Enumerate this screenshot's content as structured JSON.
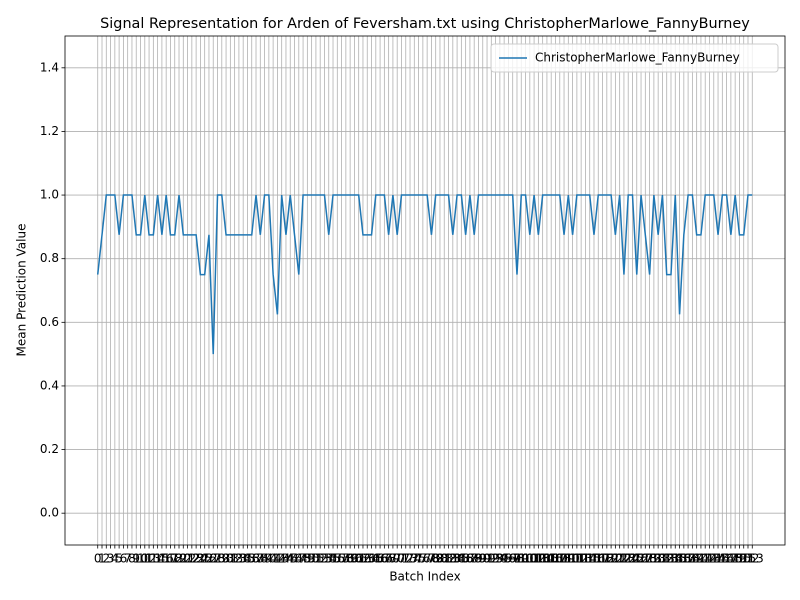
{
  "chart_data": {
    "type": "line",
    "title": "Signal Representation for Arden of Feversham.txt using ChristopherMarlowe_FannyBurney",
    "x_label": "Batch Index",
    "y_label": "Mean Prediction Value",
    "x": [
      0,
      1,
      2,
      3,
      4,
      5,
      6,
      7,
      8,
      9,
      10,
      11,
      12,
      13,
      14,
      15,
      16,
      17,
      18,
      19,
      20,
      21,
      22,
      23,
      24,
      25,
      26,
      27,
      28,
      29,
      30,
      31,
      32,
      33,
      34,
      35,
      36,
      37,
      38,
      39,
      40,
      41,
      42,
      43,
      44,
      45,
      46,
      47,
      48,
      49,
      50,
      51,
      52,
      53,
      54,
      55,
      56,
      57,
      58,
      59,
      60,
      61,
      62,
      63,
      64,
      65,
      66,
      67,
      68,
      69,
      70,
      71,
      72,
      73,
      74,
      75,
      76,
      77,
      78,
      79,
      80,
      81,
      82,
      83,
      84,
      85,
      86,
      87,
      88,
      89,
      90,
      91,
      92,
      93,
      94,
      95,
      96,
      97,
      98,
      99,
      100,
      101,
      102,
      103,
      104,
      105,
      106,
      107,
      108,
      109,
      110,
      111,
      112,
      113,
      114,
      115,
      116,
      117,
      118,
      119,
      120,
      121,
      122,
      123,
      124,
      125,
      126,
      127,
      128,
      129,
      130,
      131,
      132,
      133,
      134,
      135,
      136,
      137,
      138,
      139,
      140,
      141,
      142,
      143,
      144,
      145,
      146,
      147,
      148,
      149,
      150,
      151,
      152,
      153
    ],
    "series": [
      {
        "name": "ChristopherMarlowe_FannyBurney",
        "color": "#1f77b4",
        "values": [
          0.75,
          0.875,
          1,
          1,
          1,
          0.875,
          1,
          1,
          1,
          0.875,
          0.875,
          1,
          0.875,
          0.875,
          1,
          0.875,
          1,
          0.875,
          0.875,
          1,
          0.875,
          0.875,
          0.875,
          0.875,
          0.75,
          0.75,
          0.875,
          0.5,
          1,
          1,
          0.875,
          0.875,
          0.875,
          0.875,
          0.875,
          0.875,
          0.875,
          1,
          0.875,
          1,
          1,
          0.75,
          0.625,
          1,
          0.875,
          1,
          0.875,
          0.75,
          1,
          1,
          1,
          1,
          1,
          1,
          0.875,
          1,
          1,
          1,
          1,
          1,
          1,
          1,
          0.875,
          0.875,
          0.875,
          1,
          1,
          1,
          0.875,
          1,
          0.875,
          1,
          1,
          1,
          1,
          1,
          1,
          1,
          0.875,
          1,
          1,
          1,
          1,
          0.875,
          1,
          1,
          0.875,
          1,
          0.875,
          1,
          1,
          1,
          1,
          1,
          1,
          1,
          1,
          1,
          0.75,
          1,
          1,
          0.875,
          1,
          0.875,
          1,
          1,
          1,
          1,
          1,
          0.875,
          1,
          0.875,
          1,
          1,
          1,
          1,
          0.875,
          1,
          1,
          1,
          1,
          0.875,
          1,
          0.75,
          1,
          1,
          0.75,
          1,
          0.875,
          0.75,
          1,
          0.875,
          1,
          0.75,
          0.75,
          1,
          0.625,
          0.875,
          1,
          1,
          0.875,
          0.875,
          1,
          1,
          1,
          0.875,
          1,
          1,
          0.875,
          1,
          0.875,
          0.875,
          1,
          1
        ]
      }
    ],
    "xlim": [
      -7.65,
      160.65
    ],
    "xticks": [
      0,
      1,
      2,
      3,
      4,
      5,
      6,
      7,
      8,
      9,
      10,
      11,
      12,
      13,
      14,
      15,
      16,
      17,
      18,
      19,
      20,
      21,
      22,
      23,
      24,
      25,
      26,
      27,
      28,
      29,
      30,
      31,
      32,
      33,
      34,
      35,
      36,
      37,
      38,
      39,
      40,
      41,
      42,
      43,
      44,
      45,
      46,
      47,
      48,
      49,
      50,
      51,
      52,
      53,
      54,
      55,
      56,
      57,
      58,
      59,
      60,
      61,
      62,
      63,
      64,
      65,
      66,
      67,
      68,
      69,
      70,
      71,
      72,
      73,
      74,
      75,
      76,
      77,
      78,
      79,
      80,
      81,
      82,
      83,
      84,
      85,
      86,
      87,
      88,
      89,
      90,
      91,
      92,
      93,
      94,
      95,
      96,
      97,
      98,
      99,
      100,
      101,
      102,
      103,
      104,
      105,
      106,
      107,
      108,
      109,
      110,
      111,
      112,
      113,
      114,
      115,
      116,
      117,
      118,
      119,
      120,
      121,
      122,
      123,
      124,
      125,
      126,
      127,
      128,
      129,
      130,
      131,
      132,
      133,
      134,
      135,
      136,
      137,
      138,
      139,
      140,
      141,
      142,
      143,
      144,
      145,
      146,
      147,
      148,
      149,
      150,
      151,
      152,
      153
    ],
    "ylim": [
      -0.1,
      1.5
    ],
    "yticks": [
      {
        "value": 0,
        "label": "0.0"
      },
      0.2,
      0.4,
      0.6,
      0.8,
      {
        "value": 1,
        "label": "1.0"
      },
      1.2,
      1.4
    ],
    "grid": true,
    "legend": "upper right"
  }
}
